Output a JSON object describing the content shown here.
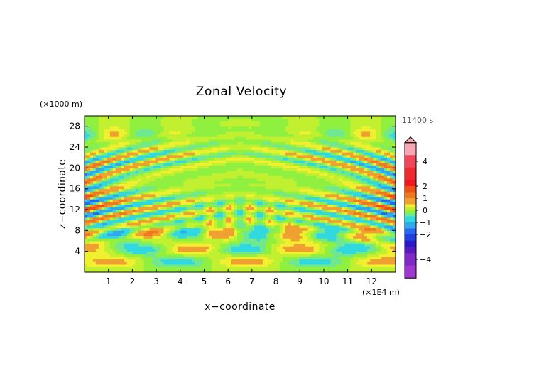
{
  "chart_data": {
    "type": "heatmap",
    "title": "Zonal Velocity",
    "xlabel": "x−coordinate",
    "ylabel": "z−coordinate",
    "x_unit": "(×1E4 m)",
    "y_unit": "(×1000 m)",
    "time_label": "11400 s",
    "xlim": [
      0,
      13
    ],
    "ylim": [
      0,
      30
    ],
    "x_ticks": [
      1,
      2,
      3,
      4,
      5,
      6,
      7,
      8,
      9,
      10,
      11,
      12
    ],
    "y_ticks": [
      4,
      8,
      12,
      16,
      20,
      24,
      28
    ],
    "colorbar": {
      "ticks": [
        4,
        2,
        1,
        0,
        -1,
        -2,
        -4
      ],
      "levels": [
        {
          "lo": 4.5,
          "hi": 5.5,
          "color": "#f8a8b4"
        },
        {
          "lo": 3.5,
          "hi": 4.5,
          "color": "#f04858"
        },
        {
          "lo": 2.5,
          "hi": 3.5,
          "color": "#f02830"
        },
        {
          "lo": 2.0,
          "hi": 2.5,
          "color": "#f01820"
        },
        {
          "lo": 1.5,
          "hi": 2.0,
          "color": "#f05018"
        },
        {
          "lo": 1.0,
          "hi": 1.5,
          "color": "#f07820"
        },
        {
          "lo": 0.5,
          "hi": 1.0,
          "color": "#f0a030"
        },
        {
          "lo": 0.25,
          "hi": 0.5,
          "color": "#f0f030"
        },
        {
          "lo": 0.0,
          "hi": 0.25,
          "color": "#c0f030"
        },
        {
          "lo": -0.25,
          "hi": 0.0,
          "color": "#90f040"
        },
        {
          "lo": -0.5,
          "hi": -0.25,
          "color": "#70e890"
        },
        {
          "lo": -1.0,
          "hi": -0.5,
          "color": "#30d8e0"
        },
        {
          "lo": -1.5,
          "hi": -1.0,
          "color": "#30a8f0"
        },
        {
          "lo": -2.0,
          "hi": -1.5,
          "color": "#2868f0"
        },
        {
          "lo": -2.5,
          "hi": -2.0,
          "color": "#2040e0"
        },
        {
          "lo": -3.0,
          "hi": -2.5,
          "color": "#2818c8"
        },
        {
          "lo": -3.5,
          "hi": -3.0,
          "color": "#5818c0"
        },
        {
          "lo": -4.5,
          "hi": -3.5,
          "color": "#8028c8"
        },
        {
          "lo": -5.5,
          "hi": -4.5,
          "color": "#a038d0"
        }
      ]
    }
  }
}
